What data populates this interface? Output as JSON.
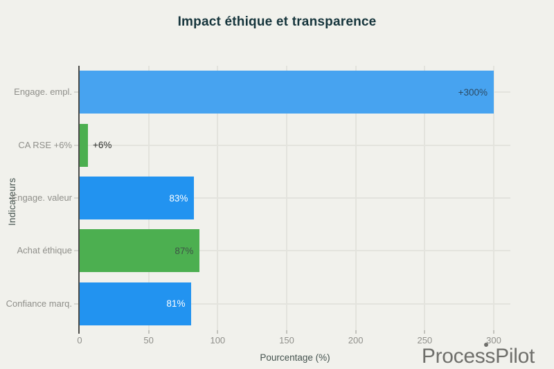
{
  "chart_data": {
    "type": "bar",
    "orientation": "horizontal",
    "title": "Impact éthique et transparence",
    "xlabel": "Pourcentage (%)",
    "ylabel": "Indicateurs",
    "categories": [
      "Engage. empl.",
      "CA RSE +6%",
      "Engage. valeur",
      "Achat éthique",
      "Confiance marq."
    ],
    "values": [
      300,
      6,
      83,
      87,
      81
    ],
    "value_labels": [
      "+300%",
      "+6%",
      "83%",
      "87%",
      "81%"
    ],
    "bar_colors": [
      "#47a3f0",
      "#4caf50",
      "#2293f0",
      "#4caf50",
      "#2293f0"
    ],
    "value_label_colors": [
      "#2b4a63",
      "#2e302d",
      "#ffffff",
      "#3e5346",
      "#ffffff"
    ],
    "value_label_inside": [
      true,
      false,
      true,
      true,
      true
    ],
    "xticks": [
      0,
      50,
      100,
      150,
      200,
      250,
      300
    ],
    "xlim": [
      0,
      300
    ],
    "grid": true,
    "legend": false
  },
  "branding": {
    "logo_text": "ProcessPilot"
  },
  "colors": {
    "background": "#f1f1ec",
    "title": "#16353c",
    "axis_line": "#4c4c49",
    "gridline": "#e3e3dd",
    "tick_label": "#8f8f8a",
    "axis_title": "#44524e",
    "logo": "#6f6f6b"
  }
}
